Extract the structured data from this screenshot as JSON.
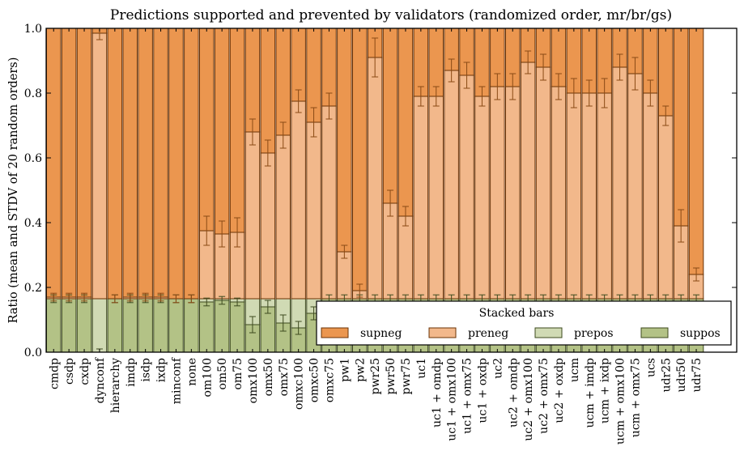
{
  "chart_data": {
    "type": "bar",
    "stacked": true,
    "title": "Predictions supported and prevented by validators (randomized order, mr/br/gs)",
    "xlabel": "",
    "ylabel": "Ratio (mean and STDV of 20 random orders)",
    "ylim": [
      0.0,
      1.0
    ],
    "yticks": [
      "0.0",
      "0.2",
      "0.4",
      "0.6",
      "0.8",
      "1.0"
    ],
    "legend": {
      "title": "Stacked bars",
      "placement": "lower-right",
      "entries": [
        "supneg",
        "preneg",
        "prepos",
        "suppos"
      ]
    },
    "colors": {
      "supneg": "#eb964f",
      "preneg": "#f2b88b",
      "prepos": "#d0dab4",
      "suppos": "#b3c286",
      "edge_orange": "#6b3306",
      "edge_green": "#3c4a1e",
      "err_orange": "#8a4a15",
      "err_green": "#3e4b1f"
    },
    "categories": [
      "cmdp",
      "csdp",
      "cxdp",
      "dynconf",
      "hierarchy",
      "imdp",
      "isdp",
      "ixdp",
      "minconf",
      "none",
      "om100",
      "om50",
      "om75",
      "omx100",
      "omx50",
      "omx75",
      "omxc100",
      "omxc50",
      "omxc75",
      "pw1",
      "pw2",
      "pwr25",
      "pwr50",
      "pwr75",
      "uc1",
      "uc1 + omdp",
      "uc1 + omx100",
      "uc1 + omx75",
      "uc1 + oxdp",
      "uc2",
      "uc2 + omdp",
      "uc2 + omx100",
      "uc2 + omx75",
      "uc2 + oxdp",
      "ucm",
      "ucm + imdp",
      "ucm + ixdp",
      "ucm + omx100",
      "ucm + omx75",
      "ucs",
      "udr25",
      "udr50",
      "udr75"
    ],
    "series_cumulative_tops": {
      "suppos": [
        0.165,
        0.165,
        0.165,
        0.0,
        0.165,
        0.165,
        0.165,
        0.165,
        0.165,
        0.165,
        0.155,
        0.16,
        0.155,
        0.085,
        0.14,
        0.09,
        0.075,
        0.12,
        0.165,
        0.165,
        0.165,
        0.165,
        0.165,
        0.165,
        0.165,
        0.165,
        0.165,
        0.165,
        0.165,
        0.165,
        0.165,
        0.165,
        0.165,
        0.165,
        0.165,
        0.165,
        0.165,
        0.165,
        0.165,
        0.165,
        0.165,
        0.165,
        0.165
      ],
      "prepos": [
        0.165,
        0.165,
        0.165,
        0.165,
        0.165,
        0.165,
        0.165,
        0.165,
        0.165,
        0.165,
        0.165,
        0.165,
        0.165,
        0.165,
        0.165,
        0.165,
        0.165,
        0.165,
        0.165,
        0.165,
        0.165,
        0.165,
        0.165,
        0.165,
        0.165,
        0.165,
        0.165,
        0.165,
        0.165,
        0.165,
        0.165,
        0.165,
        0.165,
        0.165,
        0.165,
        0.165,
        0.165,
        0.165,
        0.165,
        0.165,
        0.165,
        0.165,
        0.165
      ],
      "preneg": [
        0.17,
        0.17,
        0.17,
        0.985,
        0.165,
        0.17,
        0.17,
        0.17,
        0.165,
        0.165,
        0.375,
        0.365,
        0.37,
        0.68,
        0.615,
        0.67,
        0.775,
        0.71,
        0.76,
        0.31,
        0.19,
        0.91,
        0.46,
        0.42,
        0.79,
        0.79,
        0.87,
        0.855,
        0.79,
        0.82,
        0.82,
        0.895,
        0.88,
        0.82,
        0.8,
        0.8,
        0.8,
        0.88,
        0.86,
        0.8,
        0.73,
        0.39,
        0.24
      ],
      "supneg": [
        1.0,
        1.0,
        1.0,
        1.0,
        1.0,
        1.0,
        1.0,
        1.0,
        1.0,
        1.0,
        1.0,
        1.0,
        1.0,
        1.0,
        1.0,
        1.0,
        1.0,
        1.0,
        1.0,
        1.0,
        1.0,
        1.0,
        1.0,
        1.0,
        1.0,
        1.0,
        1.0,
        1.0,
        1.0,
        1.0,
        1.0,
        1.0,
        1.0,
        1.0,
        1.0,
        1.0,
        1.0,
        1.0,
        1.0,
        1.0,
        1.0,
        1.0,
        1.0
      ]
    },
    "stdv": {
      "suppos": [
        0.012,
        0.012,
        0.012,
        0.01,
        0.012,
        0.012,
        0.012,
        0.012,
        0.012,
        0.012,
        0.012,
        0.012,
        0.012,
        0.025,
        0.02,
        0.025,
        0.02,
        0.02,
        0.012,
        0.012,
        0.012,
        0.012,
        0.012,
        0.012,
        0.012,
        0.012,
        0.012,
        0.012,
        0.012,
        0.012,
        0.012,
        0.012,
        0.012,
        0.012,
        0.012,
        0.012,
        0.012,
        0.012,
        0.012,
        0.012,
        0.012,
        0.012,
        0.012
      ],
      "preneg": [
        0.012,
        0.012,
        0.012,
        0.02,
        0.012,
        0.012,
        0.012,
        0.012,
        0.012,
        0.012,
        0.045,
        0.04,
        0.045,
        0.04,
        0.04,
        0.04,
        0.035,
        0.045,
        0.04,
        0.02,
        0.02,
        0.06,
        0.04,
        0.03,
        0.03,
        0.03,
        0.035,
        0.04,
        0.03,
        0.04,
        0.04,
        0.035,
        0.04,
        0.04,
        0.045,
        0.04,
        0.045,
        0.04,
        0.05,
        0.04,
        0.03,
        0.05,
        0.02
      ]
    }
  }
}
